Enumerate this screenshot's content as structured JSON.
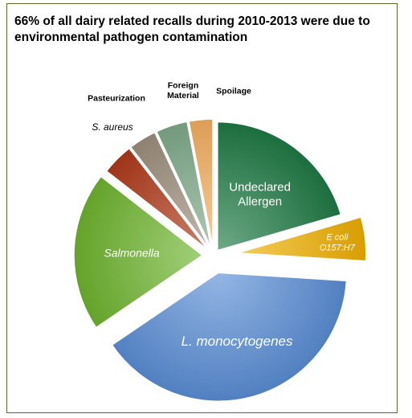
{
  "chart_data": {
    "type": "pie",
    "title": "66% of all dairy related recalls during 2010-2013 were due to environmental pathogen contamination",
    "exploded": true,
    "slices": [
      {
        "label": "Undeclared Allergen",
        "value": 20.5,
        "color": "#1f7a45",
        "italic": false
      },
      {
        "label": "E coli O157:H7",
        "value": 5.5,
        "color": "#f0b000",
        "italic": true
      },
      {
        "label": "L. monocytogenes",
        "value": 39.5,
        "color": "#5a8ed6",
        "italic": true
      },
      {
        "label": "Salmonella",
        "value": 20,
        "color": "#6fb52f",
        "italic": true
      },
      {
        "label": "S. aureus",
        "value": 4,
        "color": "#b03a1a",
        "italic": true
      },
      {
        "label": "Pasteurization",
        "value": 3.5,
        "color": "#9e8f7e",
        "italic": false
      },
      {
        "label": "Foreign Material",
        "value": 4,
        "color": "#7fab8a",
        "italic": false
      },
      {
        "label": "Spoilage",
        "value": 3,
        "color": "#f5b060",
        "italic": false
      }
    ]
  }
}
